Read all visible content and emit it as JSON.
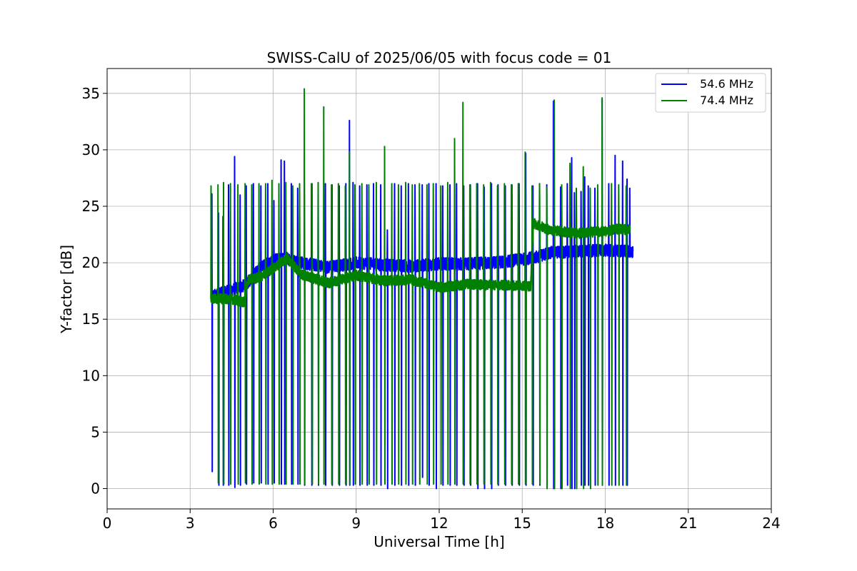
{
  "chart_data": {
    "type": "line",
    "title": "SWISS-CalU of 2025/06/05 with focus code = 01",
    "xlabel": "Universal Time [h]",
    "ylabel": "Y-factor [dB]",
    "xlim": [
      0,
      24
    ],
    "ylim": [
      -1.8,
      37.2
    ],
    "xticks": [
      "0",
      "3",
      "6",
      "9",
      "12",
      "15",
      "18",
      "21",
      "24"
    ],
    "yticks": [
      "0",
      "5",
      "10",
      "15",
      "20",
      "25",
      "30",
      "35"
    ],
    "grid": true,
    "legend_position": "top-right",
    "series": [
      {
        "name": "54.6 MHz",
        "color": "#0000ff",
        "baseline": [
          [
            3.75,
            17.0
          ],
          [
            4.5,
            17.6
          ],
          [
            5.0,
            18.0
          ],
          [
            5.5,
            19.5
          ],
          [
            6.0,
            20.2
          ],
          [
            6.5,
            20.4
          ],
          [
            7.0,
            20.0
          ],
          [
            8.0,
            19.6
          ],
          [
            9.0,
            20.0
          ],
          [
            10.0,
            19.8
          ],
          [
            11.0,
            19.7
          ],
          [
            12.0,
            19.9
          ],
          [
            13.0,
            19.9
          ],
          [
            14.0,
            20.0
          ],
          [
            15.0,
            20.3
          ],
          [
            15.5,
            20.5
          ],
          [
            16.0,
            20.9
          ],
          [
            17.0,
            21.0
          ],
          [
            18.0,
            21.1
          ],
          [
            19.0,
            21.0
          ]
        ],
        "spikes": [
          [
            3.78,
            26.1,
            1.5
          ],
          [
            4.02,
            24.4,
            0.3
          ],
          [
            4.18,
            24.1,
            0.3
          ],
          [
            4.38,
            26.9,
            0.3
          ],
          [
            4.6,
            29.4,
            0.1
          ],
          [
            4.8,
            26.0,
            0.3
          ],
          [
            5.02,
            26.8,
            0.4
          ],
          [
            5.28,
            27.0,
            0.5
          ],
          [
            5.55,
            26.8,
            0.5
          ],
          [
            5.8,
            27.0,
            0.4
          ],
          [
            6.02,
            25.5,
            0.5
          ],
          [
            6.28,
            29.1,
            0.4
          ],
          [
            6.4,
            29.0,
            0.4
          ],
          [
            6.65,
            27.0,
            0.4
          ],
          [
            6.88,
            26.6,
            0.4
          ],
          [
            7.12,
            27.0,
            0.3
          ],
          [
            7.38,
            27.0,
            0.3
          ],
          [
            7.62,
            26.9,
            0.3
          ],
          [
            7.88,
            27.0,
            0.3
          ],
          [
            8.12,
            26.9,
            0.3
          ],
          [
            8.38,
            26.8,
            0.3
          ],
          [
            8.62,
            27.0,
            0.3
          ],
          [
            8.75,
            32.6,
            0.3
          ],
          [
            8.88,
            27.1,
            0.3
          ],
          [
            9.12,
            26.8,
            0.3
          ],
          [
            9.38,
            26.9,
            0.3
          ],
          [
            9.62,
            27.0,
            0.3
          ],
          [
            9.88,
            26.9,
            0.3
          ],
          [
            10.12,
            22.9,
            0.0
          ],
          [
            10.38,
            27.0,
            0.3
          ],
          [
            10.62,
            26.8,
            0.3
          ],
          [
            10.88,
            27.0,
            0.3
          ],
          [
            11.12,
            26.9,
            0.3
          ],
          [
            11.38,
            26.9,
            1.0
          ],
          [
            11.62,
            27.0,
            0.3
          ],
          [
            11.88,
            27.0,
            0.0
          ],
          [
            12.12,
            26.8,
            0.3
          ],
          [
            12.38,
            26.9,
            0.3
          ],
          [
            12.62,
            27.0,
            0.3
          ],
          [
            12.88,
            26.8,
            0.3
          ],
          [
            13.12,
            26.9,
            0.3
          ],
          [
            13.38,
            27.0,
            0.0
          ],
          [
            13.62,
            26.7,
            0.0
          ],
          [
            13.88,
            27.0,
            0.0
          ],
          [
            14.12,
            26.9,
            0.3
          ],
          [
            14.38,
            26.8,
            0.3
          ],
          [
            14.62,
            26.9,
            0.3
          ],
          [
            14.88,
            27.0,
            0.3
          ],
          [
            15.12,
            29.7,
            0.3
          ],
          [
            15.38,
            26.8,
            0.3
          ],
          [
            15.62,
            27.0,
            0.3
          ],
          [
            15.88,
            26.9,
            0.3
          ],
          [
            16.12,
            34.3,
            0.0
          ],
          [
            16.38,
            26.7,
            0.0
          ],
          [
            16.62,
            27.0,
            0.3
          ],
          [
            16.78,
            29.3,
            0.0
          ],
          [
            16.88,
            26.2,
            0.0
          ],
          [
            17.12,
            26.3,
            0.3
          ],
          [
            17.25,
            27.6,
            0.3
          ],
          [
            17.38,
            26.8,
            0.3
          ],
          [
            17.62,
            26.6,
            0.3
          ],
          [
            17.88,
            34.5,
            0.3
          ],
          [
            18.12,
            27.0,
            0.3
          ],
          [
            18.35,
            29.5,
            0.3
          ],
          [
            18.62,
            29.0,
            0.3
          ],
          [
            18.78,
            27.4,
            0.3
          ],
          [
            18.88,
            26.6,
            20.5
          ]
        ]
      },
      {
        "name": "74.4 MHz",
        "color": "#008000",
        "baseline": [
          [
            3.75,
            16.8
          ],
          [
            4.5,
            16.8
          ],
          [
            4.95,
            16.5
          ],
          [
            5.1,
            18.5
          ],
          [
            5.5,
            18.7
          ],
          [
            6.0,
            19.5
          ],
          [
            6.5,
            20.4
          ],
          [
            7.0,
            19.0
          ],
          [
            8.0,
            18.2
          ],
          [
            9.0,
            18.9
          ],
          [
            10.0,
            18.4
          ],
          [
            11.0,
            18.5
          ],
          [
            12.0,
            17.8
          ],
          [
            13.0,
            18.1
          ],
          [
            14.0,
            18.0
          ],
          [
            15.0,
            18.0
          ],
          [
            15.3,
            17.9
          ],
          [
            15.4,
            23.5
          ],
          [
            16.0,
            22.9
          ],
          [
            17.0,
            22.6
          ],
          [
            18.0,
            22.8
          ],
          [
            18.5,
            23.0
          ],
          [
            18.9,
            22.9
          ]
        ],
        "spikes": [
          [
            3.75,
            26.8,
            17.0
          ],
          [
            4.0,
            26.9,
            0.5
          ],
          [
            4.2,
            27.1,
            0.4
          ],
          [
            4.45,
            27.0,
            0.4
          ],
          [
            4.72,
            26.9,
            0.4
          ],
          [
            4.98,
            27.0,
            0.5
          ],
          [
            5.22,
            26.9,
            0.4
          ],
          [
            5.48,
            27.0,
            0.4
          ],
          [
            5.72,
            27.0,
            0.4
          ],
          [
            5.95,
            27.3,
            0.4
          ],
          [
            6.2,
            27.0,
            0.4
          ],
          [
            6.45,
            27.1,
            0.4
          ],
          [
            6.7,
            26.8,
            0.4
          ],
          [
            6.95,
            27.0,
            0.4
          ],
          [
            7.12,
            35.4,
            0.4
          ],
          [
            7.4,
            27.0,
            0.4
          ],
          [
            7.62,
            27.1,
            0.4
          ],
          [
            7.82,
            33.8,
            0.4
          ],
          [
            8.1,
            26.9,
            0.4
          ],
          [
            8.35,
            27.0,
            0.4
          ],
          [
            8.6,
            26.8,
            0.4
          ],
          [
            8.75,
            29.8,
            0.4
          ],
          [
            8.95,
            26.9,
            0.4
          ],
          [
            9.2,
            27.0,
            0.4
          ],
          [
            9.45,
            26.9,
            0.4
          ],
          [
            9.72,
            27.1,
            0.4
          ],
          [
            10.02,
            30.3,
            0.4
          ],
          [
            10.28,
            27.0,
            0.4
          ],
          [
            10.52,
            26.9,
            0.4
          ],
          [
            10.78,
            27.1,
            0.4
          ],
          [
            11.02,
            26.9,
            0.4
          ],
          [
            11.28,
            27.0,
            0.4
          ],
          [
            11.55,
            26.9,
            0.4
          ],
          [
            11.78,
            27.0,
            0.4
          ],
          [
            12.05,
            26.8,
            0.4
          ],
          [
            12.3,
            27.1,
            0.4
          ],
          [
            12.55,
            31.0,
            0.4
          ],
          [
            12.85,
            34.2,
            0.4
          ],
          [
            13.1,
            26.9,
            0.4
          ],
          [
            13.35,
            27.0,
            0.4
          ],
          [
            13.6,
            26.9,
            0.4
          ],
          [
            13.85,
            27.1,
            0.4
          ],
          [
            14.1,
            26.8,
            0.4
          ],
          [
            14.35,
            27.0,
            0.4
          ],
          [
            14.6,
            26.9,
            0.4
          ],
          [
            14.85,
            27.0,
            0.4
          ],
          [
            15.1,
            29.8,
            0.4
          ],
          [
            15.35,
            26.8,
            0.4
          ],
          [
            15.62,
            27.0,
            0.4
          ],
          [
            15.88,
            26.7,
            0.0
          ],
          [
            16.15,
            34.4,
            0.0
          ],
          [
            16.42,
            26.9,
            0.0
          ],
          [
            16.72,
            28.8,
            0.0
          ],
          [
            16.95,
            26.6,
            0.0
          ],
          [
            17.2,
            28.5,
            0.0
          ],
          [
            17.45,
            26.6,
            0.0
          ],
          [
            17.72,
            26.9,
            0.3
          ],
          [
            17.88,
            34.6,
            0.3
          ],
          [
            18.22,
            27.0,
            0.3
          ],
          [
            18.48,
            26.9,
            0.3
          ],
          [
            18.75,
            26.8,
            0.3
          ]
        ]
      }
    ]
  }
}
